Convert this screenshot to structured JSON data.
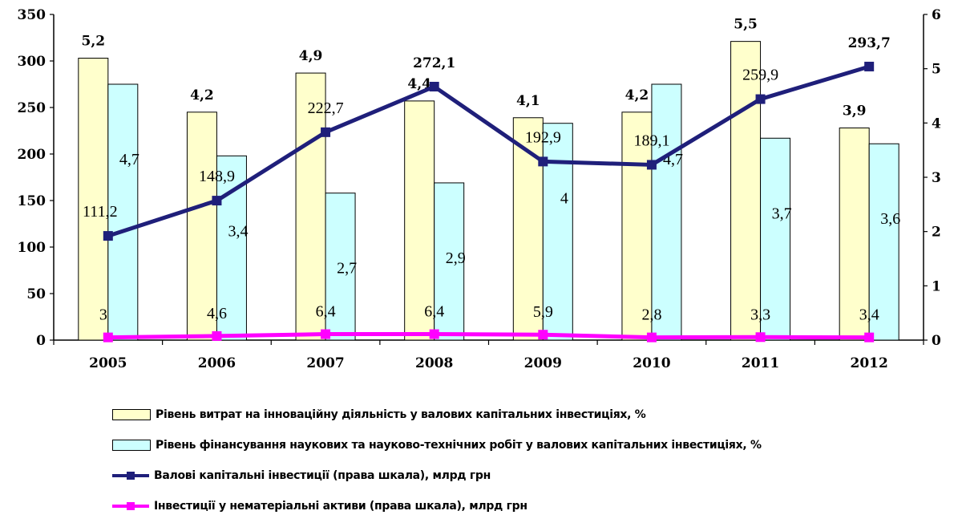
{
  "chart_data": {
    "type": "bar",
    "categories": [
      "2005",
      "2006",
      "2007",
      "2008",
      "2009",
      "2010",
      "2011",
      "2012"
    ],
    "y_left": {
      "ylim": [
        0,
        350
      ],
      "ticks": [
        "0",
        "50",
        "100",
        "150",
        "200",
        "250",
        "300",
        "350"
      ]
    },
    "y_right": {
      "ylim": [
        0,
        6
      ],
      "ticks": [
        "0",
        "1",
        "2",
        "3",
        "4",
        "5",
        "6"
      ]
    },
    "series": [
      {
        "name": "Рівень витрат на інноваційну діяльність у валових капітальних інвестиціях, %",
        "kind": "bar",
        "axis": "left",
        "color": "#FFFFCC",
        "values": [
          303,
          245,
          287,
          257,
          239,
          245,
          321,
          228
        ],
        "labels": [
          "5,2",
          "4,2",
          "4,9",
          "4,4",
          "4,1",
          "4,2",
          "5,5",
          "3,9"
        ]
      },
      {
        "name": "Рівень фінансування наукових та науково-технічних робіт у валових капітальних інвестиціях, %",
        "kind": "bar",
        "axis": "left",
        "color": "#CCFFFF",
        "values": [
          275,
          198,
          158,
          169,
          233,
          275,
          217,
          211
        ],
        "labels": [
          "4,7",
          "3,4",
          "2,7",
          "2,9",
          "4",
          "4,7",
          "3,7",
          "3,6"
        ]
      },
      {
        "name": "Валові капітальні інвестиції  (права шкала), млрд грн",
        "kind": "line",
        "axis": "right",
        "color": "#1F1F7A",
        "values": [
          1.92,
          2.57,
          3.83,
          4.67,
          3.29,
          3.23,
          4.44,
          5.04
        ],
        "labels": [
          "111,2",
          "148,9",
          "222,7",
          "272,1",
          "192,9",
          "189,1",
          "259,9",
          "293,7"
        ]
      },
      {
        "name": "Інвестиції у нематеріальні активи (права шкала), млрд грн",
        "kind": "line",
        "axis": "right",
        "color": "#FF00FF",
        "values": [
          0.05,
          0.075,
          0.11,
          0.11,
          0.1,
          0.05,
          0.055,
          0.05
        ],
        "labels": [
          "3",
          "4,6",
          "6,4",
          "6,4",
          "5,9",
          "2,8",
          "3,3",
          "3,4"
        ]
      }
    ]
  }
}
